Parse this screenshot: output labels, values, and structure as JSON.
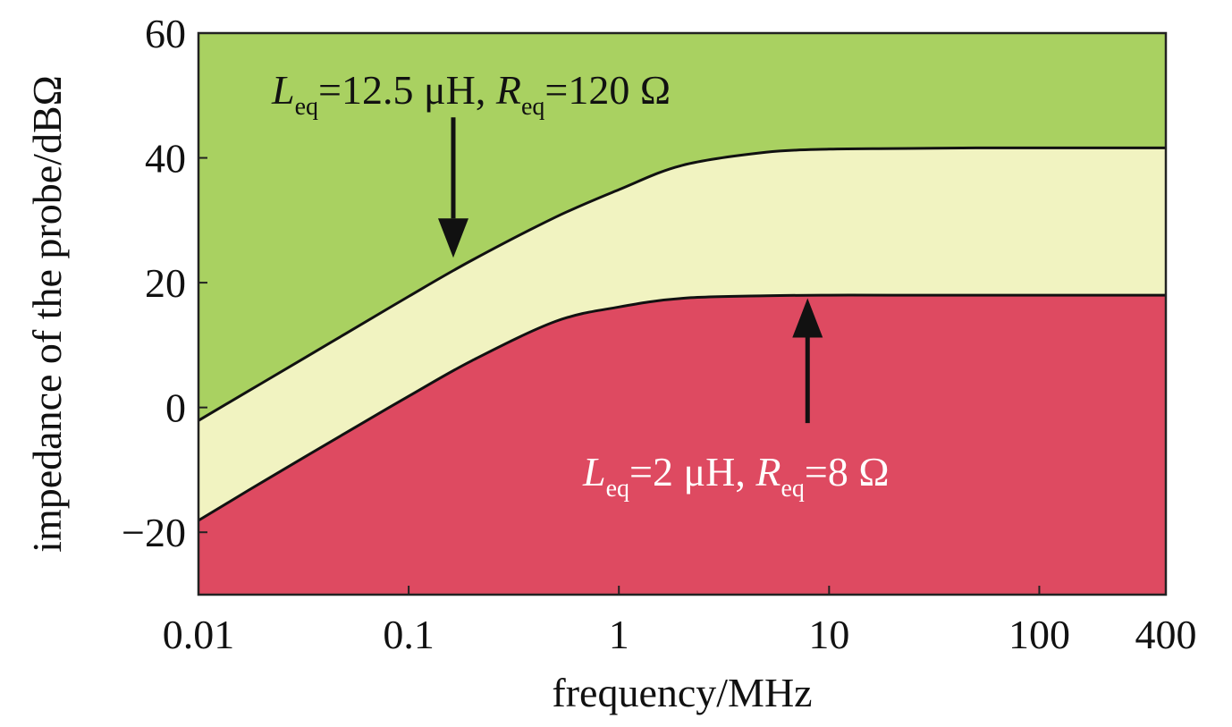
{
  "chart_data": {
    "type": "area",
    "x_scale": "log",
    "xlabel": "frequency/MHz",
    "ylabel": "impedance of the probe/dBΩ",
    "xlim": [
      0.01,
      400
    ],
    "ylim": [
      -30,
      60
    ],
    "x_ticks": [
      0.01,
      0.1,
      1,
      10,
      100,
      400
    ],
    "x_tick_labels": [
      "0.01",
      "0.1",
      "1",
      "10",
      "100",
      "400"
    ],
    "y_ticks": [
      -20,
      0,
      20,
      40,
      60
    ],
    "y_tick_labels": [
      "−20",
      "0",
      "20",
      "40",
      "60"
    ],
    "grid": false,
    "regions": {
      "upper_color": "#a9d161",
      "middle_color": "#f1f3c1",
      "lower_color": "#de4a61"
    },
    "series": [
      {
        "L_uH": 12.5,
        "R_ohm": 120,
        "x": [
          0.01,
          0.02,
          0.05,
          0.1,
          0.2,
          0.5,
          1,
          2,
          5,
          10,
          20,
          50,
          100,
          200,
          400
        ],
        "y": [
          -2.1,
          3.9,
          11.8,
          17.8,
          23.6,
          30.5,
          34.9,
          38.8,
          40.9,
          41.4,
          41.5,
          41.6,
          41.6,
          41.6,
          41.6
        ]
      },
      {
        "L_uH": 2,
        "R_ohm": 8,
        "x": [
          0.01,
          0.02,
          0.05,
          0.1,
          0.2,
          0.5,
          1,
          2,
          5,
          10,
          20,
          50,
          100,
          200,
          400
        ],
        "y": [
          -18.1,
          -12.0,
          -4.1,
          1.8,
          7.5,
          13.8,
          16.1,
          17.5,
          17.9,
          18.0,
          18.0,
          18.0,
          18.0,
          18.0,
          18.0
        ]
      }
    ],
    "annotations": [
      {
        "parts": [
          {
            "text": "L",
            "italic": true
          },
          {
            "text": "eq",
            "sub": true
          },
          {
            "text": "=12.5 μH, "
          },
          {
            "text": "R",
            "italic": true
          },
          {
            "text": "eq",
            "sub": true
          },
          {
            "text": "=120 Ω"
          }
        ],
        "color": "#111111",
        "arrow_from": [
          0.163,
          46.5
        ],
        "arrow_to": [
          0.163,
          24
        ]
      },
      {
        "parts": [
          {
            "text": "L",
            "italic": true
          },
          {
            "text": "eq",
            "sub": true
          },
          {
            "text": "=2 μH, "
          },
          {
            "text": "R",
            "italic": true
          },
          {
            "text": "eq",
            "sub": true
          },
          {
            "text": "=8 Ω"
          }
        ],
        "color": "#ffffff",
        "arrow_from": [
          7.9,
          -2.5
        ],
        "arrow_to": [
          7.9,
          17.5
        ]
      }
    ]
  }
}
